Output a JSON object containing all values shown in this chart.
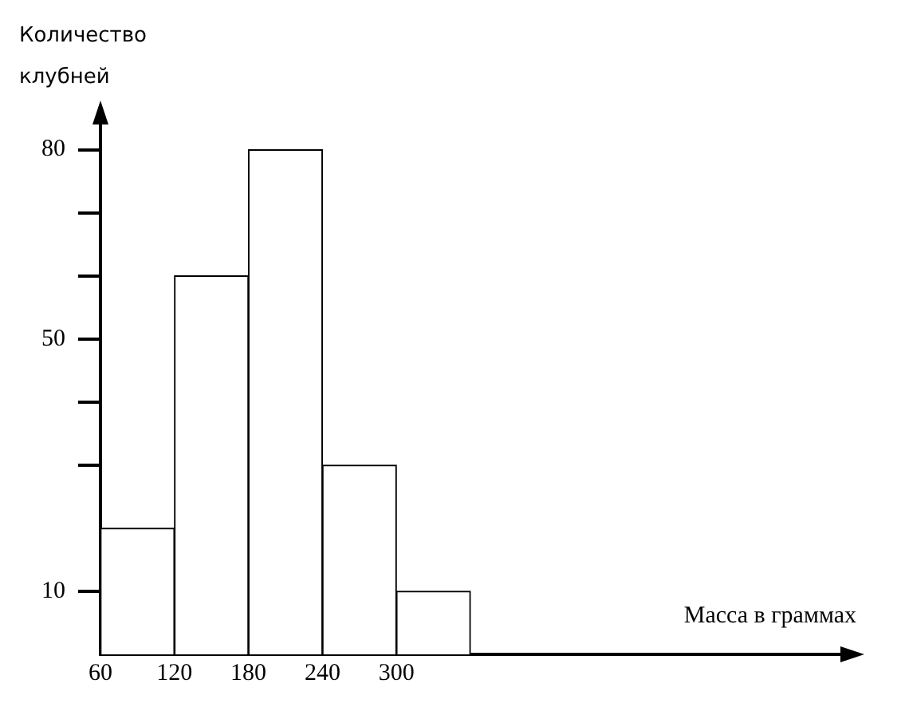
{
  "chart_data": {
    "type": "histogram",
    "xlabel": "Масса в граммах",
    "ylabel": "Количество клубней",
    "bins": [
      60,
      120,
      180,
      240,
      300,
      360
    ],
    "values": [
      20,
      60,
      80,
      30,
      10
    ],
    "color": "#ffffff",
    "xlim": [
      60,
      660
    ],
    "xticks": [
      60,
      120,
      180,
      240,
      300
    ],
    "ylim": [
      0,
      84
    ],
    "yticks": [
      10,
      {
        "value": 30,
        "label": null
      },
      {
        "value": 40,
        "label": null
      },
      50,
      {
        "value": 60,
        "label": null
      },
      {
        "value": 70,
        "label": null
      },
      80
    ],
    "grid": false,
    "legend": false
  }
}
